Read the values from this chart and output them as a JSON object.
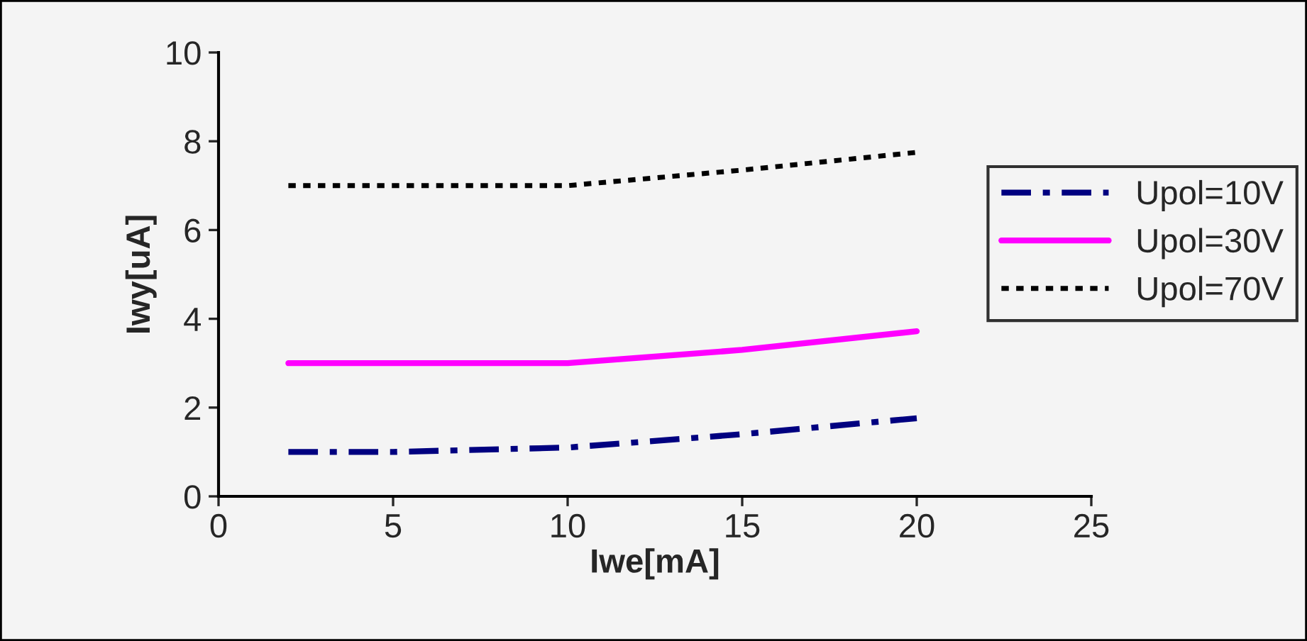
{
  "chart_data": {
    "type": "line",
    "xlabel": "Iwe[mA]",
    "ylabel": "Iwy[uA]",
    "x": [
      2,
      5,
      10,
      15,
      20
    ],
    "series": [
      {
        "name": "Upol=10V",
        "color": "#000080",
        "line_style": "dashdot",
        "values": [
          1.0,
          1.0,
          1.1,
          1.4,
          1.76
        ]
      },
      {
        "name": "Upol=30V",
        "color": "#ff00ff",
        "line_style": "solid",
        "values": [
          3.0,
          3.0,
          3.0,
          3.3,
          3.72
        ]
      },
      {
        "name": "Upol=70V",
        "color": "#000000",
        "line_style": "dotted",
        "values": [
          7.0,
          7.0,
          7.0,
          7.35,
          7.75
        ]
      }
    ],
    "xlim": [
      0,
      25
    ],
    "xticks": [
      0,
      5,
      10,
      15,
      20,
      25
    ],
    "ylim": [
      0,
      10
    ],
    "yticks": [
      0,
      2,
      4,
      6,
      8,
      10
    ],
    "grid": false,
    "legend": "right"
  }
}
